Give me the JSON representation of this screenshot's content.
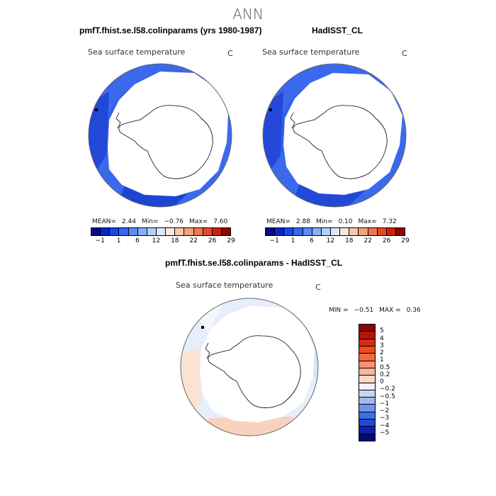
{
  "main_title": "ANN",
  "panels": [
    {
      "title": "pmfT.fhist.se.l58.colinparams (yrs 1980-1987)",
      "field": "Sea surface temperature",
      "units": "C",
      "stats": {
        "mean_label": "MEAN=",
        "mean": "2.44",
        "min_label": "Min=",
        "min": "−0.76",
        "max_label": "Max=",
        "max": "7.60"
      }
    },
    {
      "title": "HadISST_CL",
      "field": "Sea surface temperature",
      "units": "C",
      "stats": {
        "mean_label": "MEAN=",
        "mean": "2.88",
        "min_label": "Min=",
        "min": "0.10",
        "max_label": "Max=",
        "max": "7.32"
      }
    }
  ],
  "sst_colorbar": {
    "ticks": [
      "−1",
      "1",
      "6",
      "12",
      "18",
      "22",
      "26",
      "29"
    ],
    "colors": [
      "#0a0a8a",
      "#0b24c8",
      "#1f45e6",
      "#3766f2",
      "#5b8cf5",
      "#87aff7",
      "#b4cffa",
      "#dbe8fc",
      "#fbe8da",
      "#f8c8aa",
      "#f4a27c",
      "#ef7650",
      "#e54a2a",
      "#c92310",
      "#8b0505"
    ]
  },
  "diff_panel": {
    "title": "pmfT.fhist.se.l58.colinparams - HadISST_CL",
    "field": "Sea surface temperature",
    "units": "C",
    "min_label": "MIN =",
    "min": "−0.51",
    "max_label": "MAX =",
    "max": "0.36"
  },
  "diff_colorbar": {
    "ticks": [
      "5",
      "4",
      "3",
      "2",
      "1",
      "0.5",
      "0.2",
      "0",
      "−0.2",
      "−0.5",
      "−1",
      "−2",
      "−3",
      "−4",
      "−5"
    ],
    "colors": [
      "#8b0505",
      "#b5140a",
      "#d92a12",
      "#ef4a22",
      "#f56a3a",
      "#f89270",
      "#f9b596",
      "#fbd8c3",
      "#eef2fb",
      "#c7d8f5",
      "#9fbaf0",
      "#6f95ea",
      "#3f6ee3",
      "#1e48d8",
      "#0a22b0",
      "#030a7a"
    ]
  }
}
